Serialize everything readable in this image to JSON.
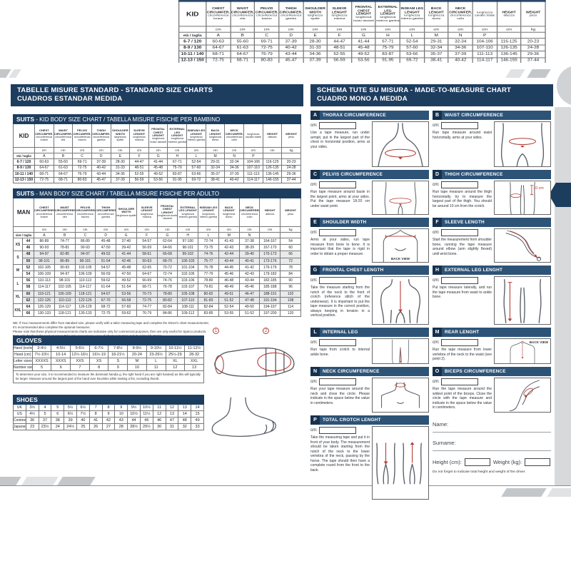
{
  "colors": {
    "navy": "#1d3d5f",
    "bar": "#2d5377",
    "badge": "#16314e",
    "red": "#b23c34",
    "band": "#d7d9db"
  },
  "left_header": {
    "line1": "TABELLE MISURE STANDARD - STANDARD SIZE CHARTS",
    "line2": "CUADROS ESTANDAR MEDIDA"
  },
  "right_header": {
    "line1": "SCHEMA TUTE SU MISURA - MADE-TO-MEASURE CHART",
    "line2": "CUADRO MONO A MEDIDA"
  },
  "kid_table": {
    "title_bold": "SUITS",
    "title_rest": " - KID BODY SIZE CHART / TABELLA MISURE FISICHE PER BAMBINO",
    "corner_label": "KID",
    "size_label": "età / taglia",
    "columns": [
      {
        "en": "CHEST CIRCUMFER.",
        "it": "circonferenza torace"
      },
      {
        "en": "WAIST CIRCUMFER.",
        "it": "circonferenza vita"
      },
      {
        "en": "PELVIS CIRCUMFER.",
        "it": "circonferenza bacino"
      },
      {
        "en": "THIGH CIRCUMFER.",
        "it": "circonferenza gamba"
      },
      {
        "en": "SHOULDER WIDTH",
        "it": "larghezza spalle"
      },
      {
        "en": "SLEEVE LENGHT",
        "it": "lunghezza manica"
      },
      {
        "en": "FRONTAL CHEST LENGHT",
        "it": "lunghezza busto davanti"
      },
      {
        "en": "EXTERNAL LEG LENGHT",
        "it": "lunghezza esterno gamba"
      },
      {
        "en": "INSEAM LEG LENGHT",
        "it": "lunghezza interno gamba"
      },
      {
        "en": "BACK LENGHT",
        "it": "lunghezza dorso"
      },
      {
        "en": "NECK CIRCUMFER.",
        "it": "circonferenza collo"
      },
      {
        "en": "",
        "it": "lunghezza cavallo totale"
      },
      {
        "en": "HEIGHT",
        "it": "altezza"
      },
      {
        "en": "WEIGHT",
        "it": "peso"
      }
    ],
    "units": [
      "cm",
      "cm",
      "cm",
      "cm",
      "cm",
      "cm",
      "cm",
      "cm",
      "cm",
      "cm",
      "cm",
      "cm",
      "cm",
      "kg"
    ],
    "letters": [
      "A",
      "B",
      "C",
      "D",
      "E",
      "F",
      "G",
      "H",
      "L",
      "M",
      "N",
      "P",
      "",
      ""
    ],
    "rows": [
      {
        "size": "6-7 / 120",
        "values": [
          "60-63",
          "55-60",
          "69-71",
          "37-39",
          "28-30",
          "44-47",
          "41-44",
          "67-71",
          "52-54",
          "29-31",
          "32-34",
          "104-106",
          "116-125",
          "20-23"
        ]
      },
      {
        "size": "8-9 / 130",
        "values": [
          "64-67",
          "61-63",
          "72-75",
          "40-42",
          "31-33",
          "48-51",
          "45-48",
          "75-79",
          "57-60",
          "32-34",
          "34-36",
          "107-110",
          "126-135",
          "24-28"
        ]
      },
      {
        "size": "10-11 / 140",
        "values": [
          "68-71",
          "64-67",
          "76-79",
          "43-44",
          "34-36",
          "52-55",
          "49-52",
          "83-87",
          "63-66",
          "35-37",
          "37-39",
          "111-113",
          "136-145",
          "29-36"
        ]
      },
      {
        "size": "12-13 / 150",
        "values": [
          "72-75",
          "68-71",
          "80-83",
          "45-47",
          "37-39",
          "56-59",
          "53-56",
          "91-95",
          "69-72",
          "38-41",
          "40-42",
          "114-117",
          "146-155",
          "37-44"
        ]
      }
    ]
  },
  "man_table": {
    "title_bold": "SUITS",
    "title_rest": " - MAN BODY SIZE CHART / TABELLA MISURE FISICHE PER ADULTO",
    "corner_label": "MAN",
    "size_label": "size / taglia",
    "columns": [
      {
        "en": "CHEST CIRCUMFERENCE",
        "it": "circonferenza torace"
      },
      {
        "en": "WAIST CIRCUMFERENCE",
        "it": "circonferenza vita"
      },
      {
        "en": "PELVIS CIRCUMFERENCE",
        "it": "circonferenza bacino"
      },
      {
        "en": "THIGH CIRCUMFERENCE",
        "it": "circonferenza gamba"
      },
      {
        "en": "SHOULDER WIDTH",
        "it": "larghezza spalle"
      },
      {
        "en": "SLEEVE LENGHT",
        "it": "lunghezza manica"
      },
      {
        "en": "FRONTAL CHEST LENGHT",
        "it": "lunghezza busto davanti"
      },
      {
        "en": "EXTERNAL LEG LENGHT",
        "it": "lunghezza esterno gamba"
      },
      {
        "en": "INSEAM LEG LENGHT",
        "it": "lunghezza interno gamba"
      },
      {
        "en": "BACK LENGHT",
        "it": "lunghezza dorso"
      },
      {
        "en": "NECK CIRCUMFERENCE",
        "it": "circonferenza collo"
      },
      {
        "en": "HEIGHT",
        "it": "altezza"
      },
      {
        "en": "WEIGHT",
        "it": "peso"
      }
    ],
    "units": [
      "cm",
      "cm",
      "cm",
      "cm",
      "cm",
      "cm",
      "cm",
      "cm",
      "cm",
      "cm",
      "cm",
      "cm",
      "kg"
    ],
    "letters": [
      "A",
      "B",
      "C",
      "D",
      "E",
      "F",
      "G",
      "H",
      "L",
      "M",
      "N",
      "",
      ""
    ],
    "groups": [
      {
        "label": "XS",
        "rows": [
          {
            "size": "44",
            "values": [
              "86-89",
              "74-77",
              "86-89",
              "45-48",
              "37-40",
              "54-57",
              "62-64",
              "97-100",
              "72-74",
              "41-43",
              "37-38",
              "164-167",
              "54"
            ]
          },
          {
            "size": "46",
            "values": [
              "90-93",
              "78-81",
              "90-93",
              "47-50",
              "39-42",
              "56-59",
              "64-66",
              "98-101",
              "73-75",
              "42-43",
              "38-39",
              "167-170",
              "60"
            ]
          }
        ]
      },
      {
        "label": "S",
        "rows": [
          {
            "size": "48",
            "values": [
              "94-97",
              "82-85",
              "94-97",
              "49-52",
              "41-44",
              "58-61",
              "66-68",
              "99-102",
              "74-76",
              "42-44",
              "39-40",
              "170-173",
              "66"
            ]
          },
          {
            "size": "50",
            "values": [
              "98-101",
              "86-89",
              "98-101",
              "51-54",
              "42-46",
              "60-63",
              "68-70",
              "100-103",
              "75-77",
              "43-44",
              "40-41",
              "173-176",
              "72"
            ]
          }
        ]
      },
      {
        "label": "M",
        "rows": [
          {
            "size": "52",
            "values": [
              "102-105",
              "90-93",
              "102-105",
              "54-57",
              "45-48",
              "62-65",
              "70-72",
              "101-104",
              "76-78",
              "44-45",
              "41-42",
              "176-179",
              "78"
            ]
          },
          {
            "size": "54",
            "values": [
              "106-109",
              "94-97",
              "106-109",
              "56-59",
              "47-50",
              "64-67",
              "72-74",
              "102-105",
              "77-79",
              "45-46",
              "42-43",
              "179-182",
              "84"
            ]
          }
        ]
      },
      {
        "label": "L",
        "rows": [
          {
            "size": "56",
            "values": [
              "110-113",
              "98-101",
              "110-113",
              "59-62",
              "49-52",
              "66-69",
              "74-76",
              "103-106",
              "78-80",
              "46-48",
              "43-44",
              "182-185",
              "90"
            ]
          },
          {
            "size": "58",
            "values": [
              "114-117",
              "102-105",
              "114-117",
              "61-64",
              "51-54",
              "68-71",
              "76-78",
              "103-107",
              "79-81",
              "48-49",
              "45-46",
              "185-188",
              "96"
            ]
          }
        ]
      },
      {
        "label": "XL",
        "rows": [
          {
            "size": "60",
            "values": [
              "118-121",
              "106-109",
              "118-121",
              "64-67",
              "53-56",
              "70-73",
              "78-80",
              "105-108",
              "80-82",
              "49-51",
              "46-47",
              "188-191",
              "102"
            ]
          },
          {
            "size": "62",
            "values": [
              "122-125",
              "110-113",
              "122-125",
              "67-70",
              "56-58",
              "72-75",
              "80-82",
              "107-110",
              "81-83",
              "51-52",
              "47-48",
              "191-194",
              "108"
            ]
          }
        ]
      },
      {
        "label": "XXL",
        "rows": [
          {
            "size": "64",
            "values": [
              "126-129",
              "114-117",
              "126-129",
              "68-72",
              "57-60",
              "74-77",
              "82-84",
              "108-111",
              "82-84",
              "52-54",
              "49-50",
              "194-197",
              "114"
            ]
          },
          {
            "size": "66",
            "values": [
              "130-133",
              "118-121",
              "130-133",
              "72-75",
              "59-62",
              "76-79",
              "84-86",
              "109-112",
              "83-85",
              "53-55",
              "51-52",
              "197-200",
              "120"
            ]
          }
        ]
      }
    ]
  },
  "notes": [
    "NB: If Your measurements differ from standard size, please verify with a tailor measuring tape and complete the Driver's chart measurements;",
    "It's recommended also complete the optional measures.",
    "Please note that these physical measurements charts are indicative only for commercial purposes, then are only useful for Sparco products.",
    "Note only for the kids' product sizes: Take into account any uses of chest protectors and its related footprint."
  ],
  "gloves": {
    "title": "GLOVES",
    "rows": [
      {
        "label": "Hand (inches)",
        "values": [
          "3-4½",
          "4-5½",
          "5-6½",
          "6-7½",
          "7-8½",
          "8-9½",
          "9-10½",
          "10-11½",
          "11-12½"
        ]
      },
      {
        "label": "Hand (cm)",
        "values": [
          "7½-10½",
          "10-14",
          "12½-16½",
          "16½-19",
          "18-21½",
          "20-24",
          "23-26½",
          "25½-29",
          "28-32"
        ]
      },
      {
        "label": "Letter sizes",
        "values": [
          "XXXXS",
          "XXXS",
          "XXS",
          "XS",
          "S",
          "M",
          "L",
          "XL",
          "XXL"
        ]
      },
      {
        "label": "Number sizes",
        "values": [
          "5",
          "6",
          "7",
          "8",
          "9",
          "10",
          "11",
          "12",
          "13"
        ]
      }
    ],
    "note": "To determine your size, it is recommended to measure the dominant hand(e.g. the right hand if you are right handed) as this will typically be larger. Measure around the largest part of the hand over knuckles while making a fist, excluding thumb.",
    "markers": [
      "1",
      "2"
    ]
  },
  "shoes": {
    "title": "SHOES",
    "rows": [
      {
        "label": "UK",
        "values": [
          "3½",
          "4",
          "5",
          "5½",
          "6½",
          "7",
          "8",
          "9",
          "9½",
          "10½",
          "11",
          "12",
          "13",
          "14"
        ]
      },
      {
        "label": "US",
        "values": [
          "4½",
          "5",
          "6",
          "6½",
          "7½",
          "8",
          "9",
          "10",
          "10½",
          "11½",
          "12",
          "13",
          "14",
          "15"
        ]
      },
      {
        "label": "Continental",
        "values": [
          "36",
          "37",
          "38",
          "39",
          "40",
          "41",
          "42",
          "43",
          "44",
          "45",
          "46",
          "47",
          "48",
          "49"
        ]
      },
      {
        "label": "Japanese (cm)",
        "values": [
          "23",
          "23½",
          "24",
          "24½",
          "25",
          "26",
          "27",
          "28",
          "28½",
          "29½",
          "30",
          "31",
          "32",
          "33"
        ]
      }
    ]
  },
  "cm_label": "cm:",
  "sections": [
    {
      "id": "A",
      "title": "THORAX CIRCUMFERENCE",
      "illus": "chest",
      "text": "Use a tape measure, run under armpit, put in the largest part of the chest in horizontal position, arms at your sides."
    },
    {
      "id": "B",
      "title": "WAIST CIRCUMFERENCE",
      "illus": "waist",
      "text": "Run tape measure around waist horizontally, arms at your sides."
    },
    {
      "id": "C",
      "title": "PELVIS CIRCUMFERENCE",
      "illus": "pelvis",
      "text": "Run tape measure around basin in the largest point, arms at your sides. Put the tape measure 18-20 cm under waist point."
    },
    {
      "id": "D",
      "title": "THIGH CIRCUMFERENCE",
      "illus": "thigh",
      "annotation": "10 cm",
      "text": "Run tape measure around the thigh horizontally, try to measure the largest part of the thigh. You should be around 10 cm from the crotch."
    },
    {
      "id": "E",
      "title": "SHOULDER WIDTH",
      "illus": "shoulder",
      "view_label": "BACK VIEW",
      "view_pos": "bottom",
      "text": "Arms at your sides, run tape measure from bone to bone. It is important that the tape is rigid in order to obtain a proper measure."
    },
    {
      "id": "F",
      "title": "SLEEVE LENGTH",
      "illus": "sleeve",
      "text": "Start the measurement from shoulder bone, running the tape measure around elbow (arm slightly flexed) until wrist bone."
    },
    {
      "id": "G",
      "title": "FRONTAL CHEST LENGTH",
      "illus": "frontal",
      "text": "Take the measure starting from the notch of the neck to the front of crotch (reference stitch of the underwear). It is important to put the tape measure in the correct position, always keeping in tension in a vertical position."
    },
    {
      "id": "H",
      "title": "EXTERNAL LEG LENGHT",
      "illus": "external",
      "text": "Put tape measure laterally, and run the tape measure from waist to ankle bone."
    },
    {
      "id": "L",
      "title": "INTERNAL LEG",
      "illus": "internal",
      "text": "Run tape from crotch to internal ankle bone."
    },
    {
      "id": "M",
      "title": "REAR LENGHT",
      "illus": "rear",
      "view_label": "BACK VIEW",
      "view_pos": "top",
      "text": "Run the tape measure from lower vertebra of the neck to the waist (see point 2)."
    },
    {
      "id": "N",
      "title": "NECK CIRCUMFERENCE",
      "illus": "neck",
      "text": "Run your tape measure around the neck and close the circle. Please indicate in the space below the value in centimeters."
    },
    {
      "id": "O",
      "title": "BICEPS CIRCUMFERENCE",
      "illus": "biceps",
      "text": "Run the tape measure around the widest point of the biceps. Close the circle with the tape measure and indicate in the space below the value in centimeters."
    },
    {
      "id": "P",
      "title": "TOTAL CROTCH LENGHT",
      "illus": "crotch",
      "text": "Take the measuring tape and put it in front of your body. The measurement should be taken starting from the notch of the neck to the lower vertebra of the neck, passing by the horse. The tape should then have a complete round from the front to the back."
    }
  ],
  "form": {
    "name_label": "Name:",
    "surname_label": "Surname:",
    "height_label": "Height (cm):",
    "weight_label": "Weight (kg):",
    "note": "Do not forget to indicate total height and weight of the driver."
  }
}
